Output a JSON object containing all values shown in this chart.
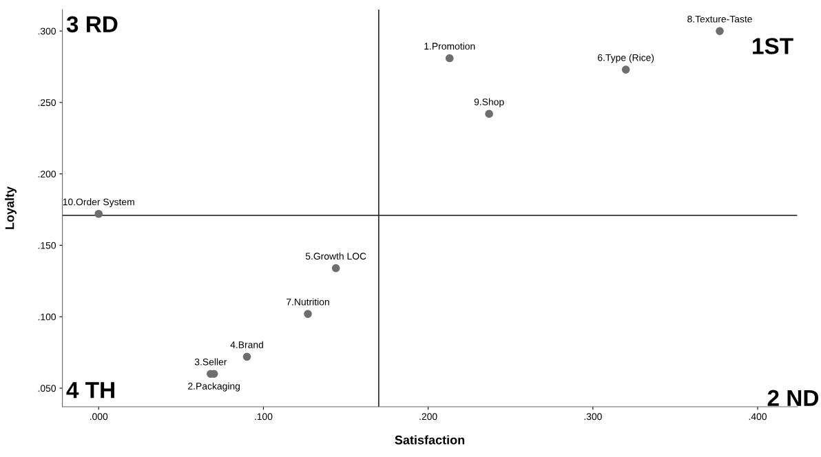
{
  "chart_data": {
    "type": "scatter",
    "xlabel": "Satisfaction",
    "ylabel": "Loyalty",
    "x": [
      0.213,
      0.32,
      0.377,
      0.237,
      0.0,
      0.144,
      0.127,
      0.09,
      0.068,
      0.07
    ],
    "series": [
      {
        "color": "#6e6e6e",
        "values": [
          0.281,
          0.273,
          0.3,
          0.242,
          0.172,
          0.134,
          0.102,
          0.072,
          0.06,
          0.06
        ]
      }
    ],
    "marker": "circle",
    "xlim": [
      -0.022,
      0.424
    ],
    "ylim": [
      0.037,
      0.315
    ],
    "xticks": [
      {
        "value": 0,
        "label": ".000"
      },
      {
        "value": 0.1,
        "label": ".100"
      },
      {
        "value": 0.2,
        "label": ".200"
      },
      {
        "value": 0.3,
        "label": ".300"
      },
      {
        "value": 0.4,
        "label": ".400"
      }
    ],
    "yticks": [
      {
        "value": 0.05,
        "label": ".050"
      },
      {
        "value": 0.1,
        "label": ".100"
      },
      {
        "value": 0.15,
        "label": ".150"
      },
      {
        "value": 0.2,
        "label": ".200"
      },
      {
        "value": 0.25,
        "label": ".250"
      },
      {
        "value": 0.3,
        "label": ".300"
      }
    ],
    "ref_lines": [
      {
        "axis": "x",
        "value": 0.17,
        "color": "#333333"
      },
      {
        "axis": "y",
        "value": 0.171,
        "color": "#333333"
      }
    ],
    "grid": false,
    "legend": false,
    "annotations": [
      {
        "text": "1.Promotion",
        "x": 0.213,
        "y": 0.281
      },
      {
        "text": "6.Type (Rice)",
        "x": 0.32,
        "y": 0.273
      },
      {
        "text": "8.Texture-Taste",
        "x": 0.377,
        "y": 0.3
      },
      {
        "text": "9.Shop",
        "x": 0.237,
        "y": 0.242
      },
      {
        "text": "10.Order System",
        "x": 0.0,
        "y": 0.172
      },
      {
        "text": "5.Growth LOC",
        "x": 0.144,
        "y": 0.134
      },
      {
        "text": "7.Nutrition",
        "x": 0.127,
        "y": 0.102
      },
      {
        "text": "4.Brand",
        "x": 0.09,
        "y": 0.072
      },
      {
        "text": "3.Seller",
        "x": 0.068,
        "y": 0.06
      },
      {
        "text": "2.Packaging",
        "x": 0.07,
        "y": 0.06
      },
      "3 RD",
      "1ST",
      "4 TH",
      "2 ND"
    ]
  }
}
